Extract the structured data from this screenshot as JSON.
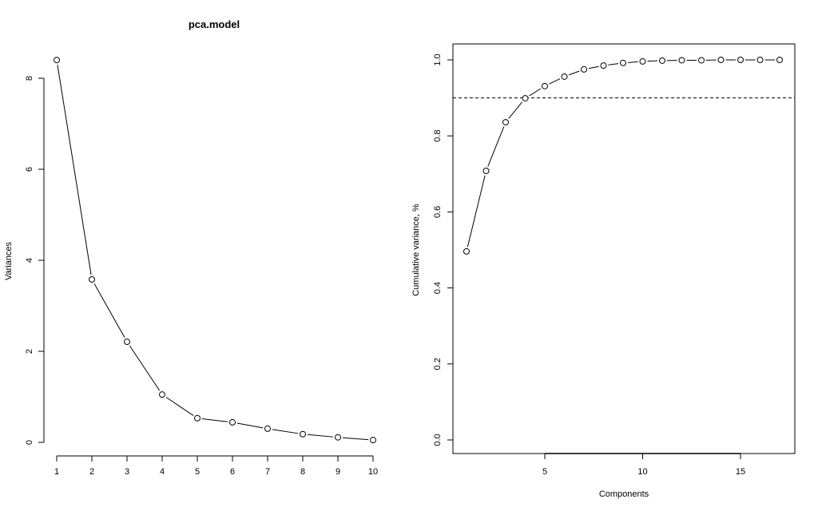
{
  "chart_data": [
    {
      "type": "line",
      "title": "pca.model",
      "xlabel": "",
      "ylabel": "Variances",
      "x": [
        1,
        2,
        3,
        4,
        5,
        6,
        7,
        8,
        9,
        10
      ],
      "values": [
        8.4,
        3.58,
        2.21,
        1.05,
        0.53,
        0.44,
        0.3,
        0.18,
        0.11,
        0.05
      ],
      "xticks": [
        "1",
        "2",
        "3",
        "4",
        "5",
        "6",
        "7",
        "8",
        "9",
        "10"
      ],
      "yticks": [
        "0",
        "2",
        "4",
        "6",
        "8"
      ],
      "ylim": [
        0,
        8.4
      ],
      "markers": "open-circle",
      "grid": false
    },
    {
      "type": "line",
      "title": "",
      "xlabel": "Components",
      "ylabel": "Cumulative variance, %",
      "x": [
        1,
        2,
        3,
        4,
        5,
        6,
        7,
        8,
        9,
        10,
        11,
        12,
        13,
        14,
        15,
        16,
        17
      ],
      "values": [
        0.496,
        0.708,
        0.836,
        0.899,
        0.931,
        0.956,
        0.975,
        0.985,
        0.992,
        0.996,
        0.998,
        0.999,
        0.999,
        1.0,
        1.0,
        1.0,
        1.0
      ],
      "xticks": [
        "5",
        "10",
        "15"
      ],
      "yticks": [
        "0.0",
        "0.2",
        "0.4",
        "0.6",
        "0.8",
        "1.0"
      ],
      "xlim": [
        0.3,
        17.7
      ],
      "ylim": [
        -0.035,
        1.04
      ],
      "reference_line": {
        "y": 0.9,
        "style": "dashed"
      },
      "markers": "open-circle",
      "grid": false
    }
  ]
}
